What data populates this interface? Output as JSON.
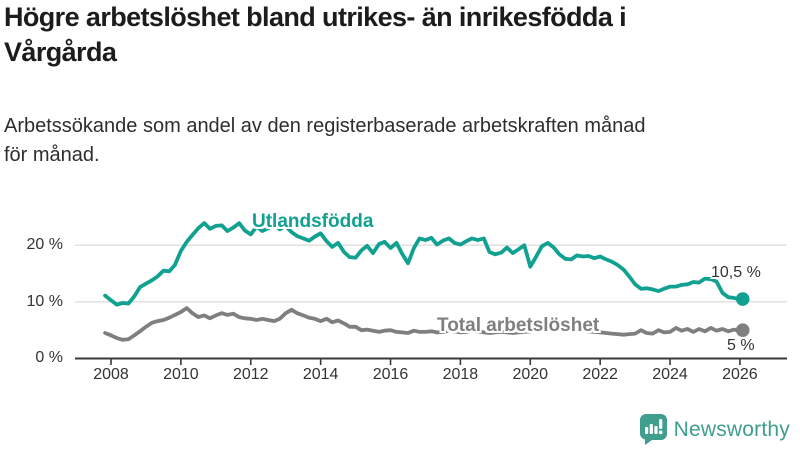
{
  "header": {
    "title_line1": "Högre arbetslöshet bland utrikes- än inrikesfödda i",
    "title_line2": "Vårgårda",
    "subtitle_line1": "Arbetssökande som andel av den registerbaserade arbetskraften månad",
    "subtitle_line2": "för månad."
  },
  "colors": {
    "foreign_series": "#10a191",
    "total_series": "#7f7f7f",
    "grid": "#dedede",
    "axis": "#3a3a3a",
    "brand_teal": "#3f9e8e"
  },
  "footer": {
    "brand_name": "Newsworthy",
    "brand_icon": "bar-chart-speech-bubble-icon"
  },
  "chart_data": {
    "type": "line",
    "title": "Högre arbetslöshet bland utrikes- än inrikesfödda i Vårgårda",
    "subtitle": "Arbetssökande som andel av den registerbaserade arbetskraften månad för månad.",
    "xlabel": "",
    "ylabel": "",
    "grid": "horizontal",
    "legend_position": "inline-labels",
    "xlim": [
      2007.6,
      2026.4
    ],
    "ylim": [
      0,
      25
    ],
    "x_ticks": [
      2008,
      2010,
      2012,
      2014,
      2016,
      2018,
      2020,
      2022,
      2024,
      2026
    ],
    "y_ticks": [
      0,
      10,
      20
    ],
    "y_tick_labels": [
      "0 %",
      "10 %",
      "20 %"
    ],
    "series": [
      {
        "name": "Utlandsfödda",
        "color": "#10a191",
        "end_label": "10,5 %",
        "end_value": 10.5,
        "points": [
          [
            2007.83,
            11.1
          ],
          [
            2008,
            10.3
          ],
          [
            2008.17,
            9.5
          ],
          [
            2008.33,
            9.8
          ],
          [
            2008.5,
            9.7
          ],
          [
            2008.67,
            11
          ],
          [
            2008.83,
            12.6
          ],
          [
            2009,
            13.2
          ],
          [
            2009.17,
            13.8
          ],
          [
            2009.33,
            14.5
          ],
          [
            2009.5,
            15.5
          ],
          [
            2009.67,
            15.4
          ],
          [
            2009.83,
            16.5
          ],
          [
            2010,
            19
          ],
          [
            2010.17,
            20.6
          ],
          [
            2010.33,
            21.8
          ],
          [
            2010.5,
            23
          ],
          [
            2010.67,
            23.9
          ],
          [
            2010.83,
            22.9
          ],
          [
            2011,
            23.4
          ],
          [
            2011.17,
            23.5
          ],
          [
            2011.33,
            22.5
          ],
          [
            2011.5,
            23.1
          ],
          [
            2011.67,
            23.9
          ],
          [
            2011.83,
            22.6
          ],
          [
            2012,
            21.9
          ],
          [
            2012.17,
            23.3
          ],
          [
            2012.33,
            22.5
          ],
          [
            2012.5,
            23
          ],
          [
            2012.67,
            23.6
          ],
          [
            2012.83,
            22.8
          ],
          [
            2013,
            23.4
          ],
          [
            2013.17,
            22.3
          ],
          [
            2013.33,
            21.6
          ],
          [
            2013.5,
            21.2
          ],
          [
            2013.67,
            20.8
          ],
          [
            2013.83,
            21.5
          ],
          [
            2014,
            22.1
          ],
          [
            2014.17,
            20.7
          ],
          [
            2014.33,
            19.7
          ],
          [
            2014.5,
            20.4
          ],
          [
            2014.67,
            18.8
          ],
          [
            2014.83,
            17.9
          ],
          [
            2015,
            17.8
          ],
          [
            2015.17,
            19.1
          ],
          [
            2015.33,
            19.9
          ],
          [
            2015.5,
            18.6
          ],
          [
            2015.67,
            20.2
          ],
          [
            2015.83,
            20.6
          ],
          [
            2016,
            19.5
          ],
          [
            2016.17,
            20.4
          ],
          [
            2016.33,
            18.5
          ],
          [
            2016.5,
            16.8
          ],
          [
            2016.67,
            19.5
          ],
          [
            2016.83,
            21.2
          ],
          [
            2017,
            20.9
          ],
          [
            2017.17,
            21.3
          ],
          [
            2017.33,
            20.1
          ],
          [
            2017.5,
            20.8
          ],
          [
            2017.67,
            21.2
          ],
          [
            2017.83,
            20.4
          ],
          [
            2018,
            20.1
          ],
          [
            2018.17,
            20.7
          ],
          [
            2018.33,
            21.2
          ],
          [
            2018.5,
            20.9
          ],
          [
            2018.67,
            21.2
          ],
          [
            2018.83,
            18.8
          ],
          [
            2019,
            18.4
          ],
          [
            2019.17,
            18.7
          ],
          [
            2019.33,
            19.6
          ],
          [
            2019.5,
            18.6
          ],
          [
            2019.67,
            19.3
          ],
          [
            2019.83,
            20
          ],
          [
            2020,
            16.2
          ],
          [
            2020.17,
            18
          ],
          [
            2020.33,
            19.8
          ],
          [
            2020.5,
            20.4
          ],
          [
            2020.67,
            19.6
          ],
          [
            2020.83,
            18.4
          ],
          [
            2021,
            17.6
          ],
          [
            2021.17,
            17.5
          ],
          [
            2021.33,
            18.2
          ],
          [
            2021.5,
            18
          ],
          [
            2021.67,
            18.1
          ],
          [
            2021.83,
            17.7
          ],
          [
            2022,
            18
          ],
          [
            2022.17,
            17.5
          ],
          [
            2022.33,
            17.1
          ],
          [
            2022.5,
            16.5
          ],
          [
            2022.67,
            15.7
          ],
          [
            2022.83,
            14.5
          ],
          [
            2023,
            13.1
          ],
          [
            2023.17,
            12.3
          ],
          [
            2023.33,
            12.4
          ],
          [
            2023.5,
            12.2
          ],
          [
            2023.67,
            11.9
          ],
          [
            2023.83,
            12.3
          ],
          [
            2024,
            12.7
          ],
          [
            2024.17,
            12.7
          ],
          [
            2024.33,
            13
          ],
          [
            2024.5,
            13.1
          ],
          [
            2024.67,
            13.5
          ],
          [
            2024.83,
            13.4
          ],
          [
            2025,
            14.1
          ],
          [
            2025.17,
            14
          ],
          [
            2025.33,
            13.6
          ],
          [
            2025.5,
            11.6
          ],
          [
            2025.67,
            10.8
          ],
          [
            2025.83,
            10.7
          ],
          [
            2026,
            10.4
          ],
          [
            2026.08,
            10.5
          ]
        ]
      },
      {
        "name": "Total arbetslöshet",
        "color": "#7f7f7f",
        "end_label": "5 %",
        "end_value": 5.0,
        "points": [
          [
            2007.83,
            4.5
          ],
          [
            2008,
            4.1
          ],
          [
            2008.17,
            3.6
          ],
          [
            2008.33,
            3.3
          ],
          [
            2008.5,
            3.4
          ],
          [
            2008.67,
            4.1
          ],
          [
            2008.83,
            4.8
          ],
          [
            2009,
            5.6
          ],
          [
            2009.17,
            6.3
          ],
          [
            2009.33,
            6.6
          ],
          [
            2009.5,
            6.8
          ],
          [
            2009.67,
            7.2
          ],
          [
            2009.83,
            7.7
          ],
          [
            2010,
            8.2
          ],
          [
            2010.17,
            8.9
          ],
          [
            2010.33,
            8
          ],
          [
            2010.5,
            7.3
          ],
          [
            2010.67,
            7.6
          ],
          [
            2010.83,
            7.1
          ],
          [
            2011,
            7.6
          ],
          [
            2011.17,
            8
          ],
          [
            2011.33,
            7.7
          ],
          [
            2011.5,
            7.9
          ],
          [
            2011.67,
            7.3
          ],
          [
            2011.83,
            7.1
          ],
          [
            2012,
            7
          ],
          [
            2012.17,
            6.8
          ],
          [
            2012.33,
            7
          ],
          [
            2012.5,
            6.8
          ],
          [
            2012.67,
            6.6
          ],
          [
            2012.83,
            7
          ],
          [
            2013,
            8
          ],
          [
            2013.17,
            8.6
          ],
          [
            2013.33,
            8
          ],
          [
            2013.5,
            7.6
          ],
          [
            2013.67,
            7.2
          ],
          [
            2013.83,
            7
          ],
          [
            2014,
            6.6
          ],
          [
            2014.17,
            7
          ],
          [
            2014.33,
            6.4
          ],
          [
            2014.5,
            6.7
          ],
          [
            2014.67,
            6.2
          ],
          [
            2014.83,
            5.6
          ],
          [
            2015,
            5.6
          ],
          [
            2015.17,
            5
          ],
          [
            2015.33,
            5.1
          ],
          [
            2015.5,
            4.9
          ],
          [
            2015.67,
            4.7
          ],
          [
            2015.83,
            4.9
          ],
          [
            2016,
            5
          ],
          [
            2016.17,
            4.7
          ],
          [
            2016.33,
            4.6
          ],
          [
            2016.5,
            4.5
          ],
          [
            2016.67,
            4.9
          ],
          [
            2016.83,
            4.7
          ],
          [
            2017,
            4.7
          ],
          [
            2017.17,
            4.8
          ],
          [
            2017.33,
            4.6
          ],
          [
            2017.5,
            4.7
          ],
          [
            2017.67,
            4.9
          ],
          [
            2017.83,
            4.8
          ],
          [
            2018,
            4.6
          ],
          [
            2018.17,
            4.7
          ],
          [
            2018.33,
            4.9
          ],
          [
            2018.5,
            4.8
          ],
          [
            2018.67,
            4.6
          ],
          [
            2018.83,
            4.5
          ],
          [
            2019,
            4.6
          ],
          [
            2019.17,
            4.7
          ],
          [
            2019.33,
            4.6
          ],
          [
            2019.5,
            4.5
          ],
          [
            2019.67,
            4.6
          ],
          [
            2019.83,
            4.7
          ],
          [
            2020,
            4.8
          ],
          [
            2020.17,
            5.4
          ],
          [
            2020.33,
            5.8
          ],
          [
            2020.5,
            5.9
          ],
          [
            2020.67,
            5.7
          ],
          [
            2020.83,
            5.5
          ],
          [
            2021,
            5.3
          ],
          [
            2021.17,
            5.2
          ],
          [
            2021.33,
            5
          ],
          [
            2021.5,
            4.9
          ],
          [
            2021.67,
            4.8
          ],
          [
            2021.83,
            4.7
          ],
          [
            2022,
            4.6
          ],
          [
            2022.17,
            4.5
          ],
          [
            2022.33,
            4.4
          ],
          [
            2022.5,
            4.3
          ],
          [
            2022.67,
            4.2
          ],
          [
            2022.83,
            4.3
          ],
          [
            2023,
            4.4
          ],
          [
            2023.17,
            5
          ],
          [
            2023.33,
            4.5
          ],
          [
            2023.5,
            4.4
          ],
          [
            2023.67,
            5
          ],
          [
            2023.83,
            4.6
          ],
          [
            2024,
            4.7
          ],
          [
            2024.17,
            5.4
          ],
          [
            2024.33,
            4.9
          ],
          [
            2024.5,
            5.2
          ],
          [
            2024.67,
            4.7
          ],
          [
            2024.83,
            5.2
          ],
          [
            2025,
            4.8
          ],
          [
            2025.17,
            5.4
          ],
          [
            2025.33,
            4.9
          ],
          [
            2025.5,
            5.2
          ],
          [
            2025.67,
            4.8
          ],
          [
            2025.83,
            5.1
          ],
          [
            2026,
            4.9
          ],
          [
            2026.08,
            5
          ]
        ]
      }
    ]
  }
}
